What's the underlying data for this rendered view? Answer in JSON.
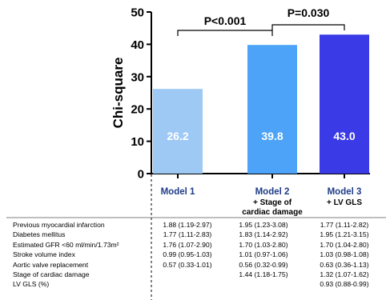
{
  "chart_data": {
    "type": "bar",
    "ylabel": "Chi-square",
    "ylim": [
      0,
      50
    ],
    "yticks": [
      "0",
      "10",
      "20",
      "30",
      "40",
      "50"
    ],
    "categories": [
      {
        "name": "Model 1",
        "sub1": "",
        "sub2": ""
      },
      {
        "name": "Model 2",
        "sub1": "+ Stage of",
        "sub2": "cardiac damage"
      },
      {
        "name": "Model 3",
        "sub1": "+ LV GLS",
        "sub2": ""
      }
    ],
    "values": [
      26.2,
      39.8,
      43.0
    ],
    "value_labels": [
      "26.2",
      "39.8",
      "43.0"
    ],
    "colors": [
      "#9ec9f5",
      "#4da3f7",
      "#3a3ae6"
    ],
    "comparisons": [
      {
        "from": 0,
        "to": 1,
        "label": "P<0.001"
      },
      {
        "from": 1,
        "to": 2,
        "label": "P=0.030"
      }
    ]
  },
  "table": {
    "rows": [
      {
        "label": "Previous myocardial infarction",
        "cells": [
          "1.88 (1.19-2.97)",
          "1.95 (1.23-3.08)",
          "1.77 (1.11-2.82)"
        ]
      },
      {
        "label": "Diabetes mellitus",
        "cells": [
          "1.77 (1.11-2.83)",
          "1.83 (1.14-2.92)",
          "1.95 (1.21-3.15)"
        ]
      },
      {
        "label": "Estimated GFR <60 ml/min/1.73m²",
        "cells": [
          "1.76 (1.07-2.90)",
          "1.70 (1.03-2.80)",
          "1.70 (1.04-2.80)"
        ]
      },
      {
        "label": "Stroke volume index",
        "cells": [
          "0.99 (0.95-1.03)",
          "1.01 (0.97-1.06)",
          "1.03 (0.98-1.08)"
        ]
      },
      {
        "label": "Aortic valve replacement",
        "cells": [
          "0.57 (0.33-1.01)",
          "0.56 (0.32-0.99)",
          "0.63 (0.36-1.13)"
        ]
      },
      {
        "label": "Stage of cardiac damage",
        "cells": [
          "",
          "1.44 (1.18-1.75)",
          "1.32 (1.07-1.62)"
        ]
      },
      {
        "label": "LV GLS (%)",
        "cells": [
          "",
          "",
          "0.93 (0.88-0.99)"
        ]
      }
    ]
  }
}
